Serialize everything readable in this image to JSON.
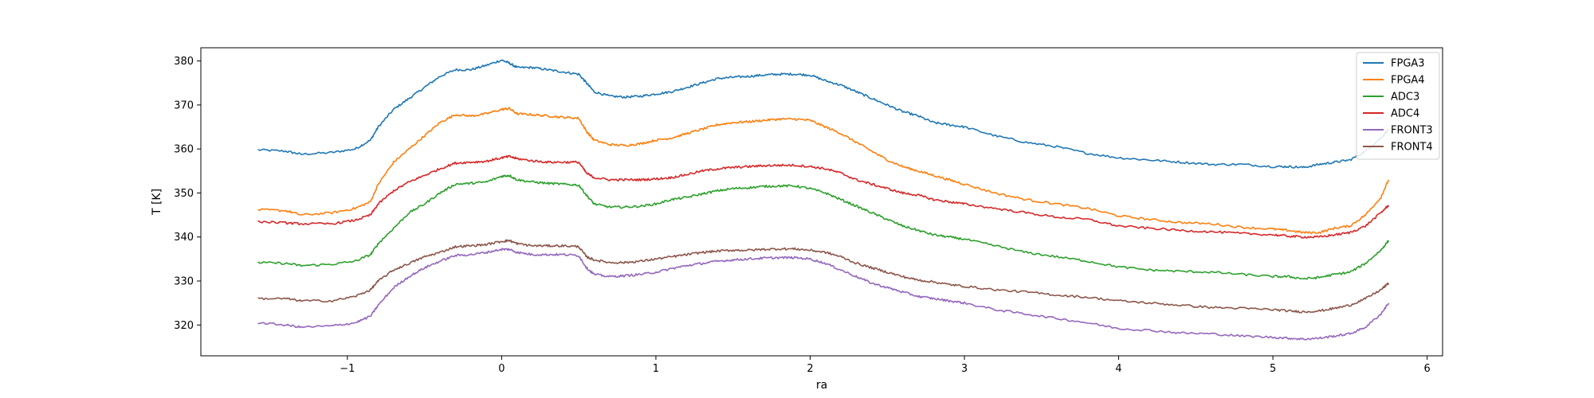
{
  "chart_data": {
    "type": "line",
    "title": "",
    "xlabel": "ra",
    "ylabel": "T [K]",
    "xlim": [
      -1.95,
      6.1
    ],
    "ylim": [
      313,
      383
    ],
    "xticks": [
      -1,
      0,
      1,
      2,
      3,
      4,
      5,
      6
    ],
    "xtick_labels": [
      "−1",
      "0",
      "1",
      "2",
      "3",
      "4",
      "5",
      "6"
    ],
    "yticks": [
      320,
      330,
      340,
      350,
      360,
      370,
      380
    ],
    "grid": false,
    "legend_position": "top-right",
    "x": [
      -1.58,
      -1.4,
      -1.3,
      -1.1,
      -0.95,
      -0.85,
      -0.8,
      -0.7,
      -0.6,
      -0.5,
      -0.4,
      -0.3,
      -0.2,
      -0.1,
      0.0,
      0.05,
      0.1,
      0.2,
      0.3,
      0.4,
      0.5,
      0.55,
      0.6,
      0.7,
      0.8,
      0.9,
      1.0,
      1.1,
      1.2,
      1.3,
      1.4,
      1.5,
      1.6,
      1.7,
      1.8,
      1.9,
      2.0,
      2.1,
      2.2,
      2.3,
      2.4,
      2.5,
      2.6,
      2.7,
      2.8,
      2.9,
      3.0,
      3.2,
      3.4,
      3.6,
      3.8,
      4.0,
      4.2,
      4.4,
      4.6,
      4.8,
      5.0,
      5.1,
      5.2,
      5.3,
      5.4,
      5.5,
      5.6,
      5.7,
      5.75
    ],
    "series": [
      {
        "name": "FPGA3",
        "color": "#1f77b4",
        "values": [
          359.8,
          359.5,
          358.8,
          359.2,
          360.0,
          362.0,
          365.0,
          369.0,
          371.5,
          374.0,
          376.5,
          378.0,
          378.0,
          379.0,
          380.2,
          379.5,
          378.5,
          378.5,
          378.0,
          377.5,
          377.0,
          375.0,
          373.0,
          372.0,
          371.8,
          372.0,
          372.5,
          373.0,
          374.0,
          375.0,
          376.0,
          376.3,
          376.5,
          376.8,
          377.0,
          377.0,
          376.8,
          375.5,
          374.5,
          373.0,
          371.5,
          370.0,
          368.5,
          367.5,
          366.0,
          365.5,
          365.0,
          363.0,
          361.5,
          360.5,
          359.0,
          358.0,
          357.5,
          357.0,
          356.5,
          356.5,
          356.0,
          356.0,
          355.8,
          356.5,
          357.0,
          357.5,
          359.5,
          362.5,
          364.5
        ]
      },
      {
        "name": "FPGA4",
        "color": "#ff7f0e",
        "values": [
          346.2,
          346.0,
          345.0,
          345.5,
          346.5,
          348.0,
          352.0,
          357.0,
          360.0,
          363.0,
          366.0,
          367.8,
          367.5,
          368.0,
          369.0,
          369.2,
          368.0,
          367.8,
          367.5,
          367.2,
          367.0,
          364.0,
          362.0,
          361.0,
          360.8,
          361.2,
          362.0,
          362.5,
          363.5,
          364.5,
          365.5,
          366.0,
          366.2,
          366.5,
          366.8,
          366.8,
          366.5,
          365.0,
          363.5,
          361.5,
          359.5,
          357.5,
          356.0,
          355.0,
          354.0,
          353.0,
          352.0,
          350.0,
          348.5,
          347.5,
          346.5,
          344.8,
          344.0,
          343.3,
          343.0,
          342.2,
          341.8,
          341.5,
          341.0,
          341.0,
          342.0,
          342.5,
          345.0,
          349.0,
          353.0
        ]
      },
      {
        "name": "ADC3",
        "color": "#2ca02c",
        "values": [
          334.2,
          334.0,
          333.5,
          333.8,
          334.5,
          336.0,
          338.5,
          342.0,
          345.5,
          347.5,
          350.0,
          352.0,
          352.2,
          352.5,
          353.8,
          354.0,
          353.0,
          352.5,
          352.2,
          352.0,
          351.8,
          349.5,
          347.5,
          346.8,
          346.8,
          347.0,
          347.5,
          348.5,
          349.0,
          349.8,
          350.5,
          351.0,
          351.2,
          351.5,
          351.6,
          351.6,
          351.0,
          350.0,
          348.5,
          347.0,
          345.5,
          344.0,
          342.5,
          341.5,
          340.5,
          340.0,
          339.5,
          338.0,
          336.5,
          335.5,
          334.5,
          333.2,
          332.5,
          332.2,
          332.0,
          331.5,
          331.0,
          331.0,
          330.5,
          330.8,
          331.5,
          332.0,
          334.0,
          337.0,
          339.2
        ]
      },
      {
        "name": "ADC4",
        "color": "#d62728",
        "values": [
          343.5,
          343.2,
          343.0,
          343.0,
          343.8,
          345.0,
          347.5,
          350.5,
          352.5,
          354.0,
          355.5,
          356.8,
          357.0,
          357.2,
          358.0,
          358.3,
          357.8,
          357.3,
          357.0,
          357.0,
          357.0,
          354.5,
          353.5,
          353.0,
          353.0,
          353.0,
          353.2,
          353.5,
          354.2,
          355.0,
          355.5,
          355.8,
          356.0,
          356.2,
          356.3,
          356.3,
          356.0,
          355.5,
          354.5,
          353.0,
          352.0,
          351.0,
          350.0,
          349.5,
          348.5,
          348.0,
          347.5,
          346.5,
          345.5,
          344.5,
          344.0,
          342.5,
          342.0,
          341.5,
          341.2,
          340.8,
          340.5,
          340.2,
          340.0,
          340.0,
          340.5,
          341.0,
          342.5,
          345.5,
          347.2
        ]
      },
      {
        "name": "FRONT3",
        "color": "#9467bd",
        "values": [
          320.5,
          320.0,
          319.5,
          319.8,
          320.5,
          322.0,
          324.5,
          328.5,
          331.0,
          333.0,
          334.5,
          335.8,
          336.0,
          336.5,
          337.2,
          337.2,
          336.5,
          336.0,
          336.0,
          336.0,
          335.8,
          333.0,
          331.5,
          331.0,
          331.2,
          331.5,
          332.0,
          332.8,
          333.5,
          334.0,
          334.5,
          334.8,
          335.0,
          335.2,
          335.3,
          335.3,
          335.0,
          334.0,
          332.5,
          331.0,
          329.5,
          328.5,
          327.5,
          326.5,
          326.0,
          325.5,
          325.0,
          323.5,
          322.5,
          321.5,
          320.5,
          319.2,
          318.8,
          318.2,
          318.0,
          317.5,
          317.2,
          317.0,
          316.8,
          317.0,
          317.5,
          318.0,
          319.5,
          322.5,
          325.0
        ]
      },
      {
        "name": "FRONT4",
        "color": "#8c564b",
        "values": [
          326.0,
          326.0,
          325.5,
          325.5,
          326.5,
          328.0,
          330.0,
          332.5,
          334.0,
          335.5,
          336.5,
          337.8,
          338.0,
          338.3,
          339.0,
          339.2,
          338.5,
          338.0,
          338.0,
          338.0,
          337.8,
          335.5,
          334.8,
          334.2,
          334.2,
          334.5,
          335.0,
          335.5,
          336.0,
          336.5,
          336.8,
          337.0,
          337.0,
          337.2,
          337.3,
          337.3,
          337.0,
          336.5,
          335.5,
          334.0,
          333.0,
          332.0,
          331.0,
          330.2,
          329.8,
          329.2,
          328.8,
          328.0,
          327.5,
          326.8,
          326.3,
          325.5,
          325.0,
          324.5,
          324.0,
          323.8,
          323.5,
          323.2,
          323.0,
          323.2,
          323.8,
          324.5,
          326.0,
          328.0,
          329.5
        ]
      }
    ]
  }
}
